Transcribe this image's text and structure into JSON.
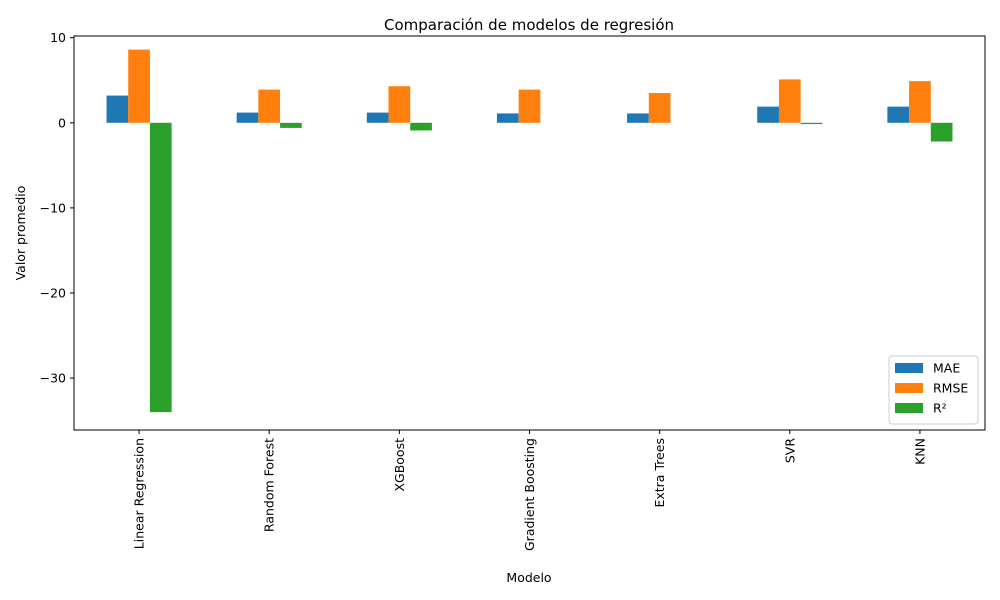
{
  "chart_data": {
    "type": "bar",
    "title": "Comparación de modelos de regresión",
    "xlabel": "Modelo",
    "ylabel": "Valor promedio",
    "categories": [
      "Linear Regression",
      "Random Forest",
      "XGBoost",
      "Gradient Boosting",
      "Extra Trees",
      "SVR",
      "KNN"
    ],
    "series": [
      {
        "name": "MAE",
        "color": "#1f77b4",
        "values": [
          3.2,
          1.2,
          1.2,
          1.1,
          1.1,
          1.9,
          1.9
        ]
      },
      {
        "name": "RMSE",
        "color": "#ff7f0e",
        "values": [
          8.6,
          3.9,
          4.3,
          3.9,
          3.5,
          5.1,
          4.9
        ]
      },
      {
        "name": "R²",
        "color": "#2ca02c",
        "values": [
          -34.0,
          -0.6,
          -0.9,
          0.0,
          0.0,
          -0.15,
          -2.2
        ]
      }
    ],
    "ylim": [
      -36.1,
      10.2
    ],
    "yticks": [
      10,
      0,
      -10,
      -20,
      -30
    ],
    "ytick_labels": [
      "10",
      "0",
      "−10",
      "−20",
      "−30"
    ],
    "legend_position": "lower-right",
    "grid": false
  }
}
